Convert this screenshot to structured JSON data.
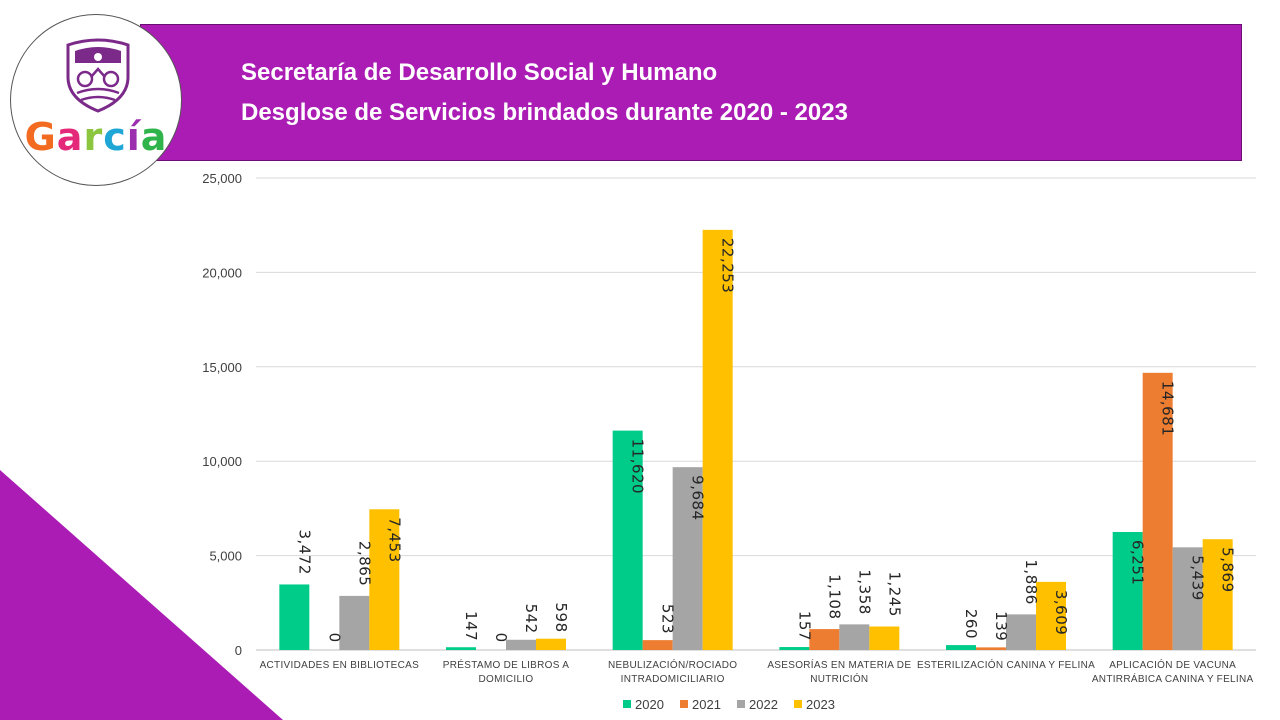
{
  "header": {
    "title_line1": "Secretaría de Desarrollo Social y Humano",
    "title_line2": "Desglose de Servicios brindados durante 2020 - 2023",
    "background_color": "#ab1cb5"
  },
  "logo": {
    "text_letters": [
      "G",
      "a",
      "r",
      "c",
      "í",
      "a"
    ],
    "letter_colors": [
      "#f26b21",
      "#e5297a",
      "#8cc63f",
      "#1ea7d6",
      "#9b2fae",
      "#2fb44b"
    ],
    "icon": "shield-crest-icon"
  },
  "chart_data": {
    "type": "bar",
    "title": "Desglose de Servicios brindados durante 2020 - 2023",
    "categories": [
      [
        "ACTIVIDADES EN BIBLIOTECAS"
      ],
      [
        "PRÉSTAMO DE LIBROS A",
        "DOMICILIO"
      ],
      [
        "NEBULIZACIÓN/ROCIADO",
        "INTRADOMICILIARIO"
      ],
      [
        "ASESORÍAS EN MATERIA DE",
        "NUTRICIÓN"
      ],
      [
        "ESTERILIZACIÓN CANINA Y FELINA"
      ],
      [
        "APLICACIÓN DE VACUNA",
        "ANTIRRÁBICA CANINA Y FELINA"
      ]
    ],
    "series": [
      {
        "name": "2020",
        "color": "#00cc8a",
        "values": [
          3472,
          147,
          11620,
          157,
          260,
          6251
        ],
        "labels": [
          "3,472",
          "147",
          "11,620",
          "157",
          "260",
          "6,251"
        ]
      },
      {
        "name": "2021",
        "color": "#ed7d31",
        "values": [
          0,
          0,
          523,
          1108,
          139,
          14681
        ],
        "labels": [
          "0",
          "0",
          "523",
          "1,108",
          "139",
          "14,681"
        ]
      },
      {
        "name": "2022",
        "color": "#a5a5a5",
        "values": [
          2865,
          542,
          9684,
          1358,
          1886,
          5439
        ],
        "labels": [
          "2,865",
          "542",
          "9,684",
          "1,358",
          "1,886",
          "5,439"
        ]
      },
      {
        "name": "2023",
        "color": "#ffc000",
        "values": [
          7453,
          598,
          22253,
          1245,
          3609,
          5869
        ],
        "labels": [
          "7,453",
          "598",
          "22,253",
          "1,245",
          "3,609",
          "5,869"
        ]
      }
    ],
    "ylim": [
      0,
      25000
    ],
    "yticks": [
      0,
      5000,
      10000,
      15000,
      20000,
      25000
    ],
    "ytick_labels": [
      "0",
      "5,000",
      "10,000",
      "15,000",
      "20,000",
      "25,000"
    ],
    "grid": true,
    "legend_position": "bottom"
  }
}
